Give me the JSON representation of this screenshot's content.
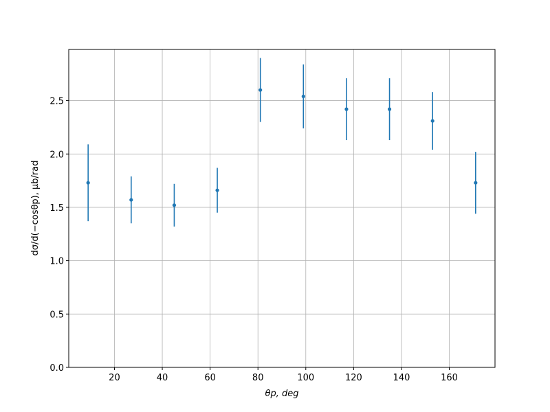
{
  "chart_data": {
    "type": "errorbar",
    "xlabel": "θp, deg",
    "ylabel": "dσ/d(−cosθp), μb/rad",
    "x": [
      9,
      27,
      45,
      63,
      81,
      99,
      117,
      135,
      153,
      171
    ],
    "series": [
      {
        "color": "#1f77b4",
        "values": [
          1.73,
          1.57,
          1.52,
          1.66,
          2.6,
          2.54,
          2.42,
          2.42,
          2.31,
          1.73
        ],
        "errors": [
          0.36,
          0.22,
          0.2,
          0.21,
          0.3,
          0.3,
          0.29,
          0.29,
          0.27,
          0.29
        ]
      }
    ],
    "xlim": [
      0.9,
      179.1
    ],
    "ylim": [
      0,
      2.98
    ],
    "xticks": [
      20,
      40,
      60,
      80,
      100,
      120,
      140,
      160
    ],
    "yticks": [
      {
        "value": 0,
        "label": "0.0"
      },
      {
        "value": 0.5,
        "label": "0.5"
      },
      {
        "value": 1,
        "label": "1.0"
      },
      {
        "value": 1.5,
        "label": "1.5"
      },
      {
        "value": 2,
        "label": "2.0"
      },
      {
        "value": 2.5,
        "label": "2.5"
      }
    ],
    "grid": true
  }
}
